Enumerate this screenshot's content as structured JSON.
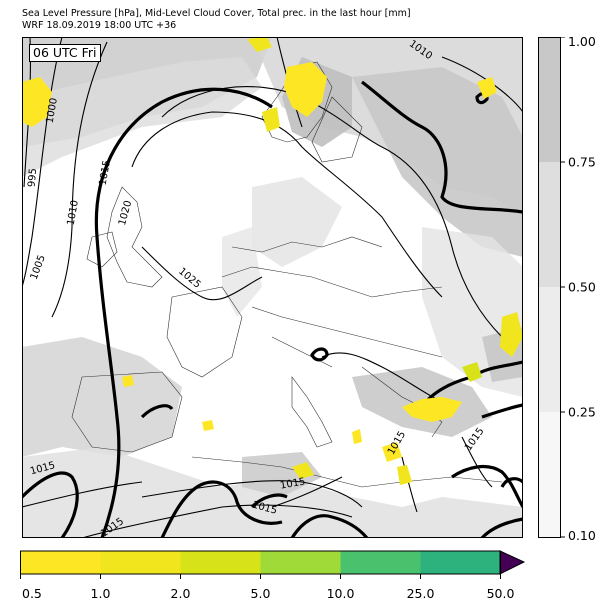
{
  "header": {
    "title": "Sea Level Pressure [hPa], Mid-Level Cloud Cover, Total prec. in the last hour [mm]",
    "run_info": "WRF 18.09.2019 18:00 UTC +36"
  },
  "map": {
    "time_badge": "06 UTC Fri",
    "isobar_labels": [
      "995",
      "1000",
      "1005",
      "1010",
      "1010",
      "1015",
      "1015",
      "1015",
      "1015",
      "1015",
      "1015",
      "1015",
      "1015",
      "1020",
      "1025"
    ]
  },
  "cloud_colorbar": {
    "ticks": [
      "0.10",
      "0.25",
      "0.50",
      "0.75",
      "1.00"
    ],
    "bands": [
      {
        "from": 0.1,
        "to": 0.25,
        "color": "#f7f7f7"
      },
      {
        "from": 0.25,
        "to": 0.5,
        "color": "#ececec"
      },
      {
        "from": 0.5,
        "to": 0.75,
        "color": "#dedede"
      },
      {
        "from": 0.75,
        "to": 1.0,
        "color": "#c8c8c8"
      }
    ]
  },
  "precip_colorbar": {
    "ticks": [
      "0.5",
      "1.0",
      "2.0",
      "5.0",
      "10.0",
      "25.0",
      "50.0"
    ],
    "colors": [
      "#fde725",
      "#f1e51d",
      "#d8e219",
      "#a0da39",
      "#4ac16d",
      "#2db27d",
      "#3b528b"
    ],
    "overflow_color": "#440154"
  }
}
